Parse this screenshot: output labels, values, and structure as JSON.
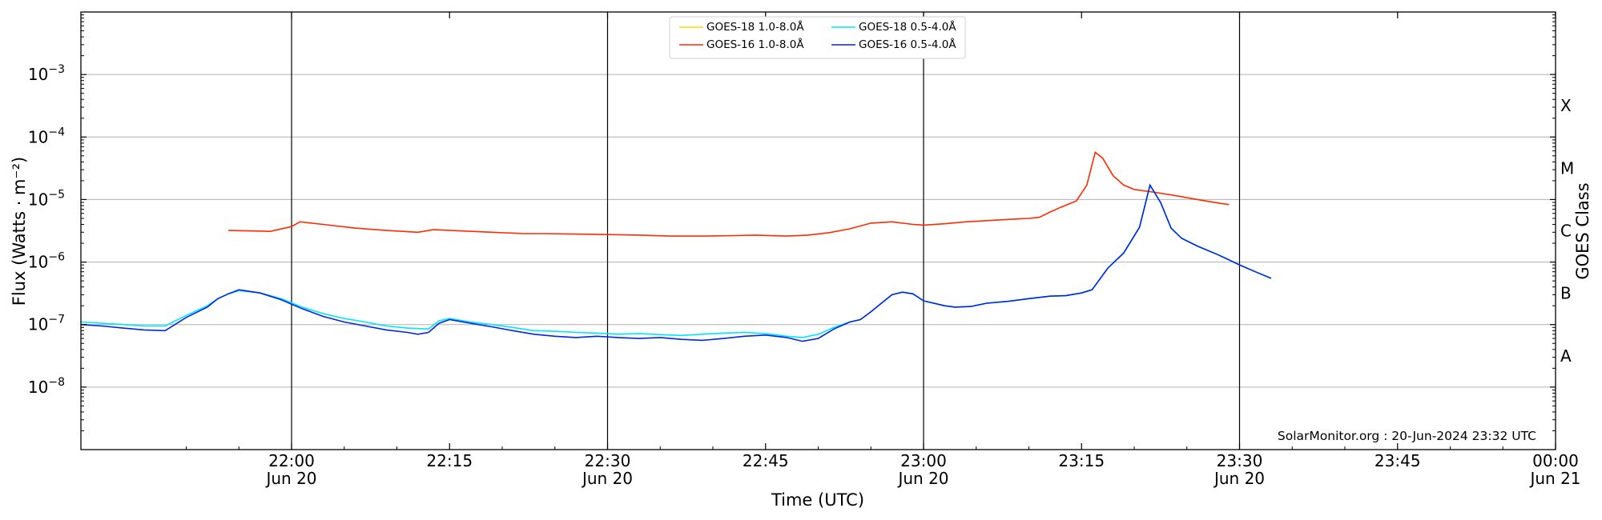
{
  "chart_data": {
    "type": "line",
    "xlabel": "Time (UTC)",
    "ylabel": "Flux (Watts · m⁻²)",
    "ylabel_right": "GOES Class",
    "credit": "SolarMonitor.org : 20-Jun-2024 23:32 UTC",
    "x_range_min": [
      1300,
      1440
    ],
    "y_log_range": [
      -9,
      -2
    ],
    "y_scale": "log",
    "grid": "horizontal gridlines at decades",
    "legend_placement": "top-center",
    "x_ticks": [
      {
        "t": 1320,
        "line1": "22:00",
        "line2": "Jun 20",
        "vline": true
      },
      {
        "t": 1335,
        "line1": "22:15",
        "line2": "",
        "vline": false
      },
      {
        "t": 1350,
        "line1": "22:30",
        "line2": "Jun 20",
        "vline": true
      },
      {
        "t": 1365,
        "line1": "22:45",
        "line2": "",
        "vline": false
      },
      {
        "t": 1380,
        "line1": "23:00",
        "line2": "Jun 20",
        "vline": true
      },
      {
        "t": 1395,
        "line1": "23:15",
        "line2": "",
        "vline": false
      },
      {
        "t": 1410,
        "line1": "23:30",
        "line2": "Jun 20",
        "vline": true
      },
      {
        "t": 1425,
        "line1": "23:45",
        "line2": "",
        "vline": false
      },
      {
        "t": 1440,
        "line1": "00:00",
        "line2": "Jun 21",
        "vline": false
      }
    ],
    "y_ticks": [
      {
        "exp": -8,
        "label": "10",
        "sup": "−8"
      },
      {
        "exp": -7,
        "label": "10",
        "sup": "−7"
      },
      {
        "exp": -6,
        "label": "10",
        "sup": "−6"
      },
      {
        "exp": -5,
        "label": "10",
        "sup": "−5"
      },
      {
        "exp": -4,
        "label": "10",
        "sup": "−4"
      },
      {
        "exp": -3,
        "label": "10",
        "sup": "−3"
      }
    ],
    "goes_classes": [
      {
        "label": "A",
        "exp": -7.5
      },
      {
        "label": "B",
        "exp": -6.5
      },
      {
        "label": "C",
        "exp": -5.5
      },
      {
        "label": "M",
        "exp": -4.5
      },
      {
        "label": "X",
        "exp": -3.5
      }
    ],
    "series": [
      {
        "name": "GOES-18 1.0-8.0Å",
        "color": "#ffd700",
        "points": []
      },
      {
        "name": "GOES-16 1.0-8.0Å",
        "color": "#ff2a00",
        "points": [
          [
            1314,
            3.2e-06
          ],
          [
            1316,
            3.15e-06
          ],
          [
            1318,
            3.1e-06
          ],
          [
            1320,
            3.7e-06
          ],
          [
            1320.8,
            4.4e-06
          ],
          [
            1323,
            4e-06
          ],
          [
            1326,
            3.5e-06
          ],
          [
            1329,
            3.2e-06
          ],
          [
            1332,
            3e-06
          ],
          [
            1333.5,
            3.3e-06
          ],
          [
            1336,
            3.15e-06
          ],
          [
            1339,
            3e-06
          ],
          [
            1342,
            2.85e-06
          ],
          [
            1344,
            2.85e-06
          ],
          [
            1347,
            2.8e-06
          ],
          [
            1350,
            2.75e-06
          ],
          [
            1353,
            2.7e-06
          ],
          [
            1356,
            2.6e-06
          ],
          [
            1359,
            2.6e-06
          ],
          [
            1362,
            2.65e-06
          ],
          [
            1364,
            2.7e-06
          ],
          [
            1367,
            2.6e-06
          ],
          [
            1369,
            2.7e-06
          ],
          [
            1371,
            2.95e-06
          ],
          [
            1373,
            3.4e-06
          ],
          [
            1375,
            4.2e-06
          ],
          [
            1377,
            4.4e-06
          ],
          [
            1379,
            4e-06
          ],
          [
            1380,
            3.9e-06
          ],
          [
            1382,
            4.1e-06
          ],
          [
            1384,
            4.4e-06
          ],
          [
            1386,
            4.6e-06
          ],
          [
            1388,
            4.8e-06
          ],
          [
            1390,
            5e-06
          ],
          [
            1391,
            5.2e-06
          ],
          [
            1392,
            6.3e-06
          ],
          [
            1393,
            7.5e-06
          ],
          [
            1394.5,
            9.5e-06
          ],
          [
            1395.5,
            1.7e-05
          ],
          [
            1396.3,
            5.7e-05
          ],
          [
            1397,
            4.6e-05
          ],
          [
            1398,
            2.4e-05
          ],
          [
            1399,
            1.7e-05
          ],
          [
            1400,
            1.45e-05
          ],
          [
            1402,
            1.3e-05
          ],
          [
            1404,
            1.15e-05
          ],
          [
            1406,
            1e-05
          ],
          [
            1408,
            8.8e-06
          ],
          [
            1409,
            8.3e-06
          ]
        ]
      },
      {
        "name": "GOES-18 0.5-4.0Å",
        "color": "#00e5ff",
        "points": [
          [
            1300,
            1.1e-07
          ],
          [
            1302,
            1.05e-07
          ],
          [
            1304,
            1e-07
          ],
          [
            1306,
            9.5e-08
          ],
          [
            1308,
            9.5e-08
          ],
          [
            1310,
            1.4e-07
          ],
          [
            1312,
            2e-07
          ],
          [
            1313,
            2.6e-07
          ],
          [
            1314,
            3.1e-07
          ],
          [
            1315,
            3.5e-07
          ],
          [
            1317,
            3.2e-07
          ],
          [
            1319,
            2.6e-07
          ],
          [
            1321,
            1.9e-07
          ],
          [
            1323,
            1.5e-07
          ],
          [
            1325,
            1.25e-07
          ],
          [
            1327,
            1.1e-07
          ],
          [
            1329,
            9.5e-08
          ],
          [
            1331,
            8.8e-08
          ],
          [
            1333,
            8.5e-08
          ],
          [
            1334,
            1.15e-07
          ],
          [
            1335,
            1.25e-07
          ],
          [
            1337,
            1.1e-07
          ],
          [
            1339,
            1e-07
          ],
          [
            1341,
            9e-08
          ],
          [
            1343,
            8e-08
          ],
          [
            1345,
            7.8e-08
          ],
          [
            1347,
            7.5e-08
          ],
          [
            1349,
            7.3e-08
          ],
          [
            1351,
            7e-08
          ],
          [
            1353,
            7.2e-08
          ],
          [
            1355,
            6.9e-08
          ],
          [
            1357,
            6.7e-08
          ],
          [
            1359,
            7e-08
          ],
          [
            1361,
            7.3e-08
          ],
          [
            1363,
            7.5e-08
          ],
          [
            1365,
            7.2e-08
          ],
          [
            1367,
            6.5e-08
          ],
          [
            1368.5,
            6.2e-08
          ],
          [
            1370,
            7e-08
          ],
          [
            1371.5,
            9e-08
          ],
          [
            1373,
            1.1e-07
          ],
          [
            1374,
            1.2e-07
          ],
          [
            1375,
            1.6e-07
          ],
          [
            1376,
            2.2e-07
          ],
          [
            1377,
            3e-07
          ],
          [
            1378,
            3.3e-07
          ],
          [
            1379,
            3.1e-07
          ],
          [
            1380,
            2.4e-07
          ],
          [
            1382,
            2e-07
          ],
          [
            1383,
            1.9e-07
          ],
          [
            1384.5,
            1.95e-07
          ],
          [
            1386,
            2.2e-07
          ],
          [
            1388,
            2.35e-07
          ],
          [
            1390,
            2.6e-07
          ],
          [
            1392,
            2.85e-07
          ],
          [
            1393.5,
            2.9e-07
          ],
          [
            1395,
            3.2e-07
          ],
          [
            1396,
            3.6e-07
          ],
          [
            1397.5,
            8e-07
          ],
          [
            1399,
            1.4e-06
          ],
          [
            1400.5,
            3.6e-06
          ],
          [
            1401.5,
            1.7e-05
          ],
          [
            1402.5,
            9e-06
          ],
          [
            1403.5,
            3.5e-06
          ],
          [
            1404.5,
            2.4e-06
          ],
          [
            1406,
            1.8e-06
          ],
          [
            1408,
            1.3e-06
          ],
          [
            1410,
            9e-07
          ],
          [
            1411.5,
            7e-07
          ],
          [
            1413,
            5.5e-07
          ]
        ]
      },
      {
        "name": "GOES-16 0.5-4.0Å",
        "color": "#0026e0",
        "points": [
          [
            1300,
            1e-07
          ],
          [
            1302,
            9.5e-08
          ],
          [
            1304,
            8.8e-08
          ],
          [
            1306,
            8.2e-08
          ],
          [
            1308,
            8e-08
          ],
          [
            1310,
            1.3e-07
          ],
          [
            1312,
            1.9e-07
          ],
          [
            1313,
            2.6e-07
          ],
          [
            1314,
            3.1e-07
          ],
          [
            1315,
            3.6e-07
          ],
          [
            1317,
            3.2e-07
          ],
          [
            1319,
            2.5e-07
          ],
          [
            1321,
            1.8e-07
          ],
          [
            1323,
            1.35e-07
          ],
          [
            1325,
            1.1e-07
          ],
          [
            1327,
            9.5e-08
          ],
          [
            1329,
            8.2e-08
          ],
          [
            1331,
            7.5e-08
          ],
          [
            1332,
            7e-08
          ],
          [
            1333,
            7.5e-08
          ],
          [
            1334,
            1.05e-07
          ],
          [
            1335,
            1.2e-07
          ],
          [
            1337,
            1.05e-07
          ],
          [
            1339,
            9.2e-08
          ],
          [
            1341,
            8e-08
          ],
          [
            1343,
            7e-08
          ],
          [
            1345,
            6.5e-08
          ],
          [
            1347,
            6.2e-08
          ],
          [
            1349,
            6.5e-08
          ],
          [
            1351,
            6.2e-08
          ],
          [
            1353,
            6e-08
          ],
          [
            1355,
            6.2e-08
          ],
          [
            1357,
            5.8e-08
          ],
          [
            1359,
            5.6e-08
          ],
          [
            1361,
            6e-08
          ],
          [
            1363,
            6.5e-08
          ],
          [
            1365,
            6.8e-08
          ],
          [
            1367,
            6.2e-08
          ],
          [
            1368.5,
            5.4e-08
          ],
          [
            1370,
            6e-08
          ],
          [
            1371.5,
            8.5e-08
          ],
          [
            1373,
            1.1e-07
          ],
          [
            1374,
            1.2e-07
          ],
          [
            1375,
            1.6e-07
          ],
          [
            1376,
            2.2e-07
          ],
          [
            1377,
            3e-07
          ],
          [
            1378,
            3.3e-07
          ],
          [
            1379,
            3.1e-07
          ],
          [
            1380,
            2.4e-07
          ],
          [
            1382,
            2e-07
          ],
          [
            1383,
            1.9e-07
          ],
          [
            1384.5,
            1.95e-07
          ],
          [
            1386,
            2.2e-07
          ],
          [
            1388,
            2.35e-07
          ],
          [
            1390,
            2.6e-07
          ],
          [
            1392,
            2.85e-07
          ],
          [
            1393.5,
            2.9e-07
          ],
          [
            1395,
            3.2e-07
          ],
          [
            1396,
            3.6e-07
          ],
          [
            1397.5,
            8e-07
          ],
          [
            1399,
            1.4e-06
          ],
          [
            1400.5,
            3.6e-06
          ],
          [
            1401.5,
            1.7e-05
          ],
          [
            1402.5,
            9e-06
          ],
          [
            1403.5,
            3.5e-06
          ],
          [
            1404.5,
            2.4e-06
          ],
          [
            1406,
            1.8e-06
          ],
          [
            1408,
            1.3e-06
          ],
          [
            1410,
            9e-07
          ],
          [
            1411.5,
            7e-07
          ],
          [
            1413,
            5.5e-07
          ]
        ]
      }
    ]
  }
}
